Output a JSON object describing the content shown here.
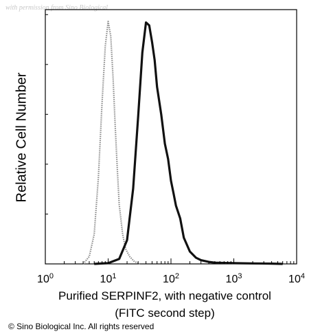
{
  "watermark": "with permission from Sino Biological",
  "copyright": "© Sino Biological Inc. All rights reserved",
  "chart_data": {
    "type": "line",
    "xlabel_line1": "Purified SERPINF2, with negative control",
    "xlabel_line2": "(FITC second step)",
    "ylabel": "Relative Cell Number",
    "x_scale": "log",
    "xlim": [
      1,
      10000
    ],
    "ylim": [
      0,
      1
    ],
    "x_ticks": [
      {
        "base": "10",
        "exp": "0",
        "value": 1
      },
      {
        "base": "10",
        "exp": "1",
        "value": 10
      },
      {
        "base": "10",
        "exp": "2",
        "value": 100
      },
      {
        "base": "10",
        "exp": "3",
        "value": 1000
      },
      {
        "base": "10",
        "exp": "4",
        "value": 10000
      }
    ],
    "grid": false,
    "series": [
      {
        "style": "dotted",
        "color": "#8a8a8a",
        "x": [
          4.0,
          5.0,
          6.0,
          7.0,
          8.0,
          9.0,
          10.0,
          11.0,
          12.0,
          13.0,
          14.0,
          15.0,
          17.0,
          19.0,
          22.0,
          26.0,
          32.0
        ],
        "y": [
          0.0,
          0.03,
          0.12,
          0.35,
          0.65,
          0.88,
          0.98,
          0.92,
          0.75,
          0.55,
          0.38,
          0.24,
          0.12,
          0.06,
          0.03,
          0.01,
          0.0
        ]
      },
      {
        "style": "solid",
        "color": "#111111",
        "x": [
          6,
          10,
          15,
          20,
          25,
          30,
          35,
          40,
          45,
          50,
          55,
          60,
          70,
          80,
          90,
          100,
          110,
          120,
          140,
          160,
          200,
          250,
          300,
          400,
          500,
          700,
          1000,
          2000,
          4000,
          6000
        ],
        "y": [
          0.0,
          0.003,
          0.02,
          0.1,
          0.3,
          0.6,
          0.85,
          0.98,
          0.96,
          0.9,
          0.82,
          0.72,
          0.6,
          0.49,
          0.42,
          0.34,
          0.28,
          0.24,
          0.18,
          0.11,
          0.05,
          0.025,
          0.015,
          0.008,
          0.005,
          0.004,
          0.003,
          0.002,
          0.001,
          0.0
        ]
      }
    ]
  }
}
